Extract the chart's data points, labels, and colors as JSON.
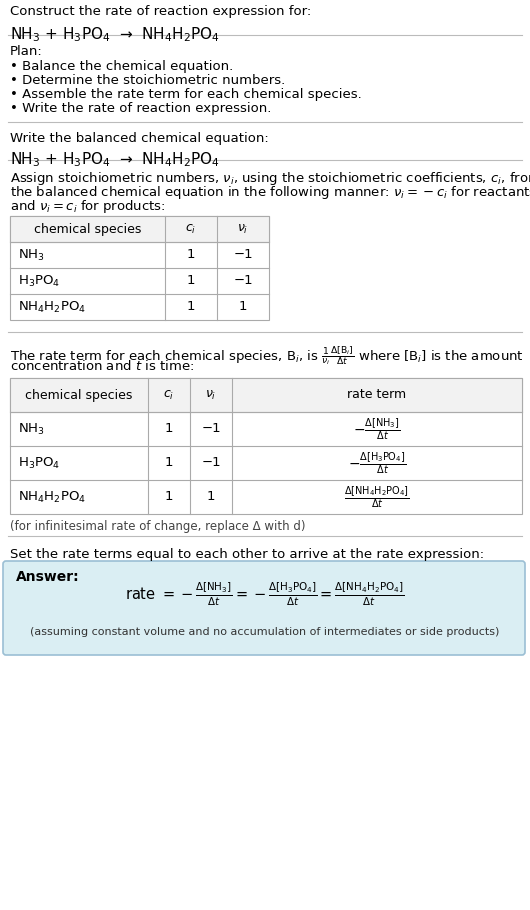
{
  "bg_color": "#ffffff",
  "text_color": "#000000",
  "answer_bg": "#daeef3",
  "answer_border": "#9bbfd4",
  "title_text": "Construct the rate of reaction expression for:",
  "equation1": "NH$_3$ + H$_3$PO$_4$  →  NH$_4$H$_2$PO$_4$",
  "plan_header": "Plan:",
  "plan_items": [
    "• Balance the chemical equation.",
    "• Determine the stoichiometric numbers.",
    "• Assemble the rate term for each chemical species.",
    "• Write the rate of reaction expression."
  ],
  "balanced_header": "Write the balanced chemical equation:",
  "balanced_eq": "NH$_3$ + H$_3$PO$_4$  →  NH$_4$H$_2$PO$_4$",
  "stoich_intro_lines": [
    "Assign stoichiometric numbers, $\\nu_i$, using the stoichiometric coefficients, $c_i$, from",
    "the balanced chemical equation in the following manner: $\\nu_i = -c_i$ for reactants",
    "and $\\nu_i = c_i$ for products:"
  ],
  "table1_headers": [
    "chemical species",
    "$c_i$",
    "$\\nu_i$"
  ],
  "table1_rows": [
    [
      "NH$_3$",
      "1",
      "−1"
    ],
    [
      "H$_3$PO$_4$",
      "1",
      "−1"
    ],
    [
      "NH$_4$H$_2$PO$_4$",
      "1",
      "1"
    ]
  ],
  "rate_intro_lines": [
    "The rate term for each chemical species, B$_i$, is $\\frac{1}{\\nu_i}\\frac{\\Delta[\\mathrm{B}_i]}{\\Delta t}$ where [B$_i$] is the amount",
    "concentration and $t$ is time:"
  ],
  "table2_headers": [
    "chemical species",
    "$c_i$",
    "$\\nu_i$",
    "rate term"
  ],
  "table2_rows": [
    [
      "NH$_3$",
      "1",
      "−1",
      "$-\\frac{\\Delta[\\mathrm{NH_3}]}{\\Delta t}$"
    ],
    [
      "H$_3$PO$_4$",
      "1",
      "−1",
      "$-\\frac{\\Delta[\\mathrm{H_3PO_4}]}{\\Delta t}$"
    ],
    [
      "NH$_4$H$_2$PO$_4$",
      "1",
      "1",
      "$\\frac{\\Delta[\\mathrm{NH_4H_2PO_4}]}{\\Delta t}$"
    ]
  ],
  "infinitesimal_note": "(for infinitesimal rate of change, replace Δ with d)",
  "set_equal_text": "Set the rate terms equal to each other to arrive at the rate expression:",
  "answer_label": "Answer:",
  "rate_expression_parts": [
    "rate $= -\\frac{\\Delta[\\mathrm{NH_3}]}{\\Delta t}$",
    "$= -\\frac{\\Delta[\\mathrm{H_3PO_4}]}{\\Delta t}$",
    "$= \\frac{\\Delta[\\mathrm{NH_4H_2PO_4}]}{\\Delta t}$"
  ],
  "assumption_note": "(assuming constant volume and no accumulation of intermediates or side products)"
}
